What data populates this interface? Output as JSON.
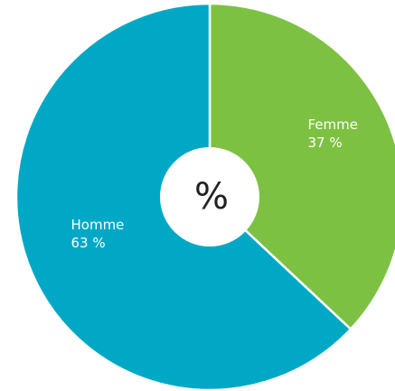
{
  "chart_data": {
    "type": "pie",
    "donut": true,
    "center_label": "%",
    "categories": [
      "Femme",
      "Homme"
    ],
    "values": [
      37,
      63
    ],
    "value_labels": [
      "37 %",
      "63 %"
    ],
    "colors": [
      "#7dc142",
      "#00a8c6"
    ]
  }
}
